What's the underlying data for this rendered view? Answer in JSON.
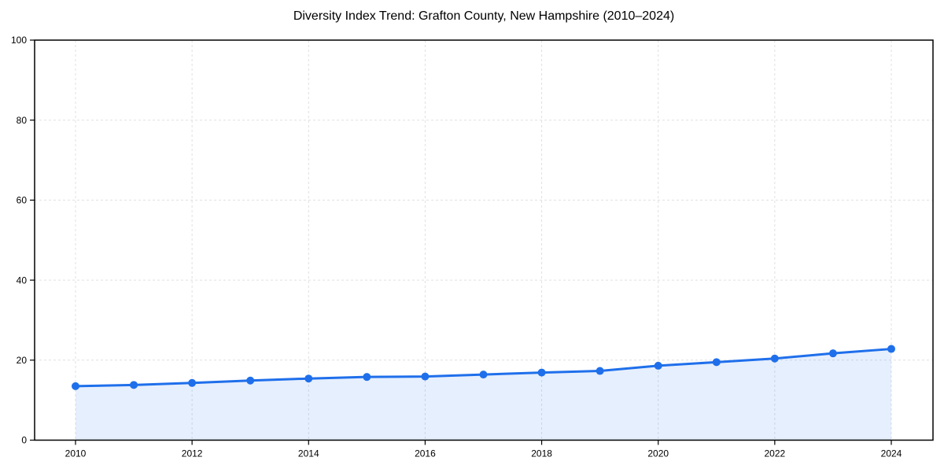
{
  "chart_data": {
    "type": "line",
    "subtype": "line-with-area-fill",
    "title": "Diversity Index Trend: Grafton County, New Hampshire (2010–2024)",
    "xlabel": "",
    "ylabel": "",
    "x": [
      2010,
      2011,
      2012,
      2013,
      2014,
      2015,
      2016,
      2017,
      2018,
      2019,
      2020,
      2021,
      2022,
      2023,
      2024
    ],
    "series": [
      {
        "name": "Diversity Index",
        "values": [
          13.5,
          13.8,
          14.3,
          14.9,
          15.4,
          15.8,
          15.9,
          16.4,
          16.9,
          17.3,
          18.6,
          19.5,
          20.4,
          21.7,
          22.8
        ]
      }
    ],
    "ylim": [
      0,
      100
    ],
    "yticks": [
      0,
      20,
      40,
      60,
      80,
      100
    ],
    "xticks": [
      2010,
      2012,
      2014,
      2016,
      2018,
      2020,
      2022,
      2024
    ],
    "grid": true,
    "grid_style": "dashed",
    "legend": "none",
    "marker": "circle",
    "colors": {
      "line": "#1f6feb",
      "fill": "#1f6feb",
      "fill_opacity": 0.11,
      "grid": "#e0e0e0",
      "axis": "#000000",
      "text": "#000000",
      "background": "#ffffff"
    }
  }
}
